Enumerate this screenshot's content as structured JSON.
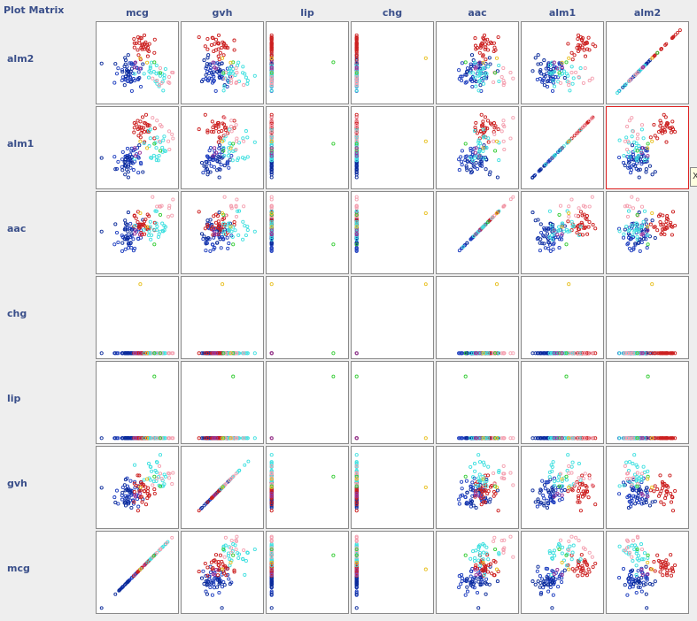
{
  "panel": {
    "title": "Plot Matrix"
  },
  "chart_data": {
    "type": "scatter",
    "variables": [
      "mcg",
      "gvh",
      "lip",
      "chg",
      "aac",
      "alm1",
      "alm2"
    ],
    "columns": [
      "mcg",
      "gvh",
      "lip",
      "chg",
      "aac",
      "alm1",
      "alm2"
    ],
    "rows": [
      "alm2",
      "alm1",
      "aac",
      "chg",
      "lip",
      "gvh",
      "mcg"
    ],
    "selected_cell": {
      "row": "alm1",
      "column": "alm2"
    },
    "class_colors": [
      "#1f3fbf",
      "#0a2a9a",
      "#cc2020",
      "#40e0e0",
      "#f4a0b0",
      "#33cc33",
      "#e8c020",
      "#993399"
    ],
    "diag_color": "#2a5cc8",
    "tooltip_text": "X",
    "grid": false
  }
}
